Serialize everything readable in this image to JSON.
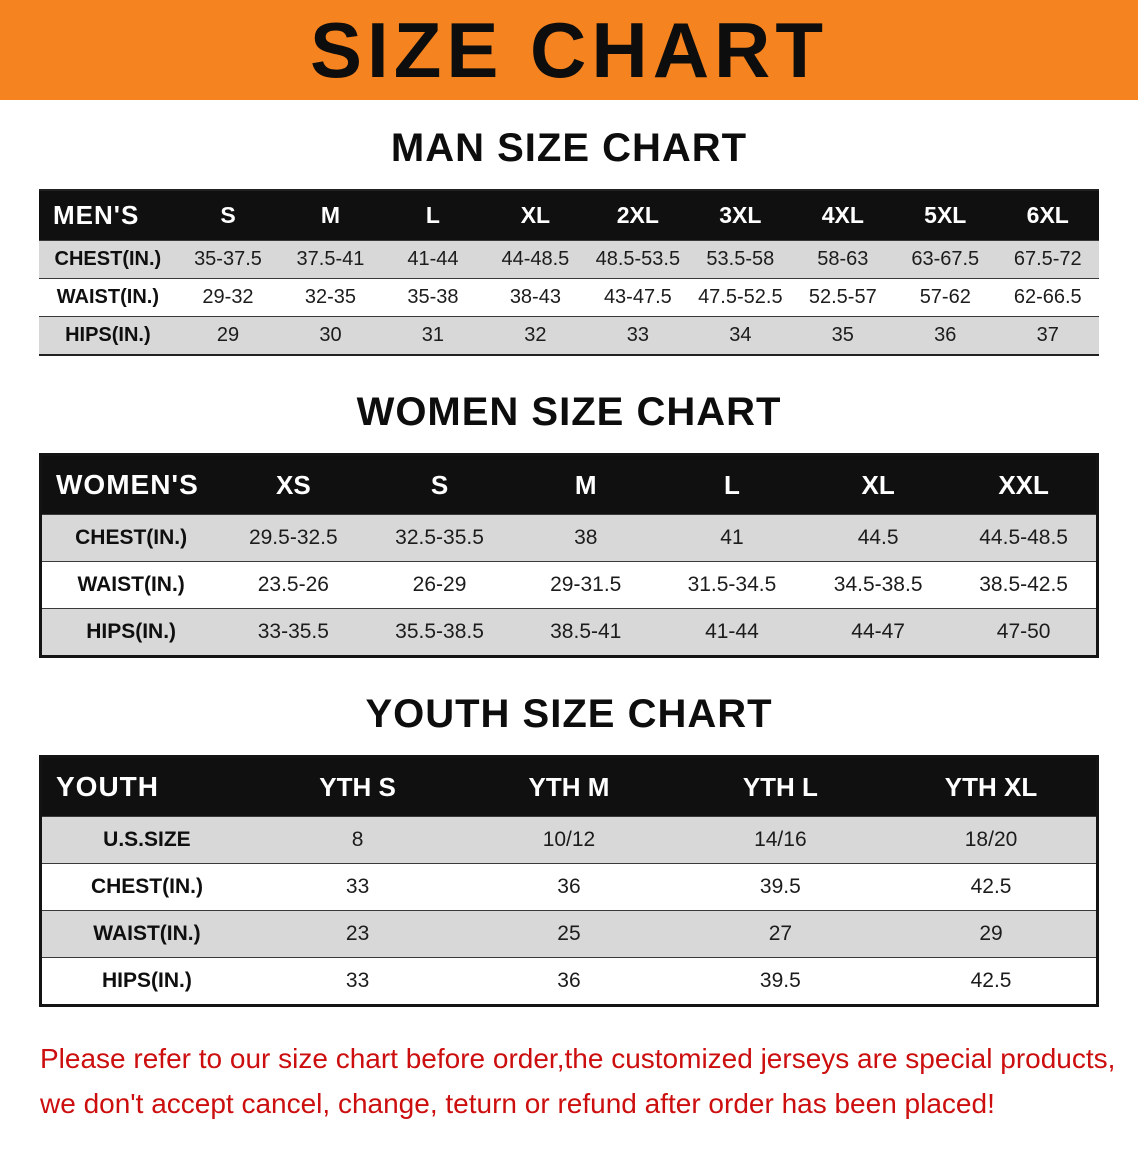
{
  "banner": {
    "title": "SIZE CHART"
  },
  "colors": {
    "accent_orange": "#f5831f",
    "header_black": "#101010",
    "stripe_gray": "#d8d8d8",
    "footer_red": "#cc0e0e"
  },
  "chart_data": [
    {
      "type": "table",
      "title": "MAN SIZE CHART",
      "header": [
        "MEN'S",
        "S",
        "M",
        "L",
        "XL",
        "2XL",
        "3XL",
        "4XL",
        "5XL",
        "6XL"
      ],
      "rows": [
        [
          "CHEST(IN.)",
          "35-37.5",
          "37.5-41",
          "41-44",
          "44-48.5",
          "48.5-53.5",
          "53.5-58",
          "58-63",
          "63-67.5",
          "67.5-72"
        ],
        [
          "WAIST(IN.)",
          "29-32",
          "32-35",
          "35-38",
          "38-43",
          "43-47.5",
          "47.5-52.5",
          "52.5-57",
          "57-62",
          "62-66.5"
        ],
        [
          "HIPS(IN.)",
          "29",
          "30",
          "31",
          "32",
          "33",
          "34",
          "35",
          "36",
          "37"
        ]
      ]
    },
    {
      "type": "table",
      "title": "WOMEN SIZE CHART",
      "header": [
        "WOMEN'S",
        "XS",
        "S",
        "M",
        "L",
        "XL",
        "XXL"
      ],
      "rows": [
        [
          "CHEST(IN.)",
          "29.5-32.5",
          "32.5-35.5",
          "38",
          "41",
          "44.5",
          "44.5-48.5"
        ],
        [
          "WAIST(IN.)",
          "23.5-26",
          "26-29",
          "29-31.5",
          "31.5-34.5",
          "34.5-38.5",
          "38.5-42.5"
        ],
        [
          "HIPS(IN.)",
          "33-35.5",
          "35.5-38.5",
          "38.5-41",
          "41-44",
          "44-47",
          "47-50"
        ]
      ]
    },
    {
      "type": "table",
      "title": "YOUTH SIZE CHART",
      "header": [
        "YOUTH",
        "YTH S",
        "YTH M",
        "YTH L",
        "YTH XL"
      ],
      "rows": [
        [
          "U.S.SIZE",
          "8",
          "10/12",
          "14/16",
          "18/20"
        ],
        [
          "CHEST(IN.)",
          "33",
          "36",
          "39.5",
          "42.5"
        ],
        [
          "WAIST(IN.)",
          "23",
          "25",
          "27",
          "29"
        ],
        [
          "HIPS(IN.)",
          "33",
          "36",
          "39.5",
          "42.5"
        ]
      ]
    }
  ],
  "footer": {
    "line1": "Please refer to our size chart before order,the customized jerseys are special products,",
    "line2": "we don't accept cancel, change, teturn or refund after order has been placed!"
  }
}
